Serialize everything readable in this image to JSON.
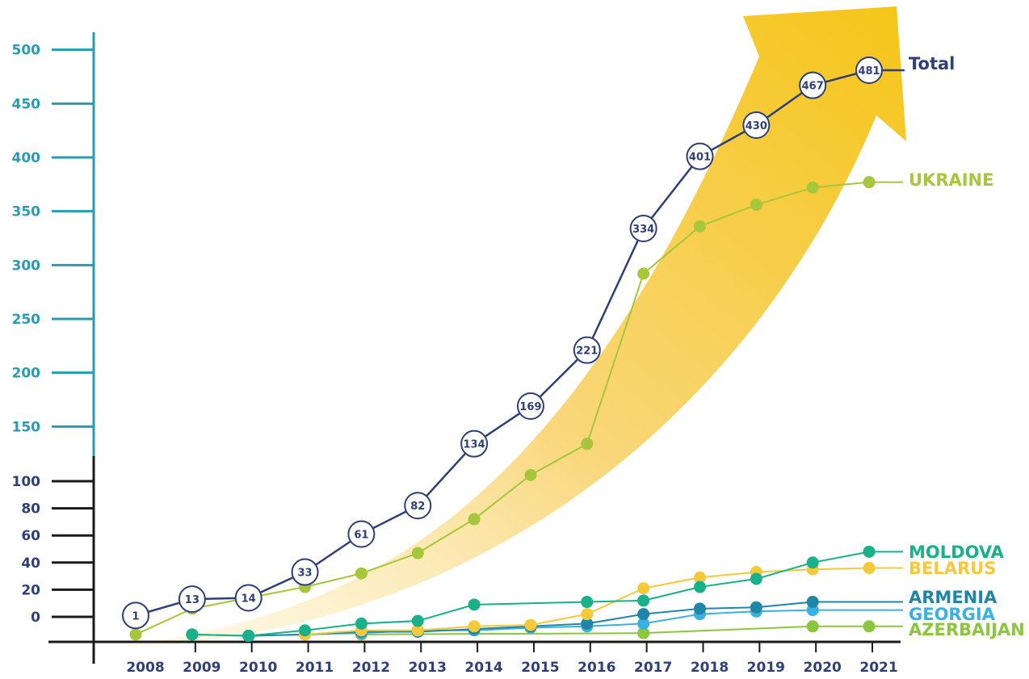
{
  "chart_data": {
    "type": "line",
    "x": [
      "2008",
      "2009",
      "2010",
      "2011",
      "2012",
      "2013",
      "2014",
      "2015",
      "2016",
      "2017",
      "2018",
      "2019",
      "2020",
      "2021"
    ],
    "y_ticks_upper": [
      "500",
      "450",
      "400",
      "350",
      "300",
      "250",
      "200",
      "150"
    ],
    "y_ticks_lower": [
      "100",
      "80",
      "60",
      "40",
      "20",
      "0"
    ],
    "series": [
      {
        "name": "Total",
        "color": "#2f3f78",
        "values": [
          1,
          13,
          14,
          33,
          61,
          82,
          134,
          169,
          221,
          334,
          401,
          430,
          467,
          481
        ],
        "labels": [
          "1",
          "13",
          "14",
          "33",
          "61",
          "82",
          "134",
          "169",
          "221",
          "334",
          "401",
          "430",
          "467",
          "481"
        ]
      },
      {
        "name": "UKRAINE",
        "color": "#a8c63c",
        "values": [
          -13,
          6,
          14,
          22,
          32,
          47,
          72,
          105,
          134,
          292,
          336,
          356,
          372,
          377
        ]
      },
      {
        "name": "MOLDOVA",
        "color": "#19b08a",
        "values": [
          null,
          -13,
          -14,
          -10,
          -5,
          -3,
          9,
          null,
          11,
          12,
          22,
          28,
          40,
          48
        ]
      },
      {
        "name": "BELARUS",
        "color": "#f5c93a",
        "values": [
          null,
          null,
          null,
          -13,
          -10,
          -10,
          -7,
          -6,
          2,
          21,
          29,
          33,
          35,
          36
        ]
      },
      {
        "name": "ARMENIA",
        "color": "#1f86a8",
        "values": [
          null,
          -13,
          -14,
          -13,
          -11,
          -11,
          -9,
          -7,
          -5,
          2,
          6,
          7,
          11,
          null
        ]
      },
      {
        "name": "GEORGIA",
        "color": "#3ab1e0",
        "values": [
          null,
          null,
          -14,
          -13,
          -12,
          -10,
          -10,
          -8,
          -7,
          -5,
          2,
          4,
          5,
          null
        ]
      },
      {
        "name": "AZERBAIJAN",
        "color": "#8cc63f",
        "values": [
          null,
          null,
          null,
          null,
          -13,
          null,
          null,
          null,
          null,
          -12,
          null,
          null,
          -7,
          -7
        ]
      }
    ]
  }
}
